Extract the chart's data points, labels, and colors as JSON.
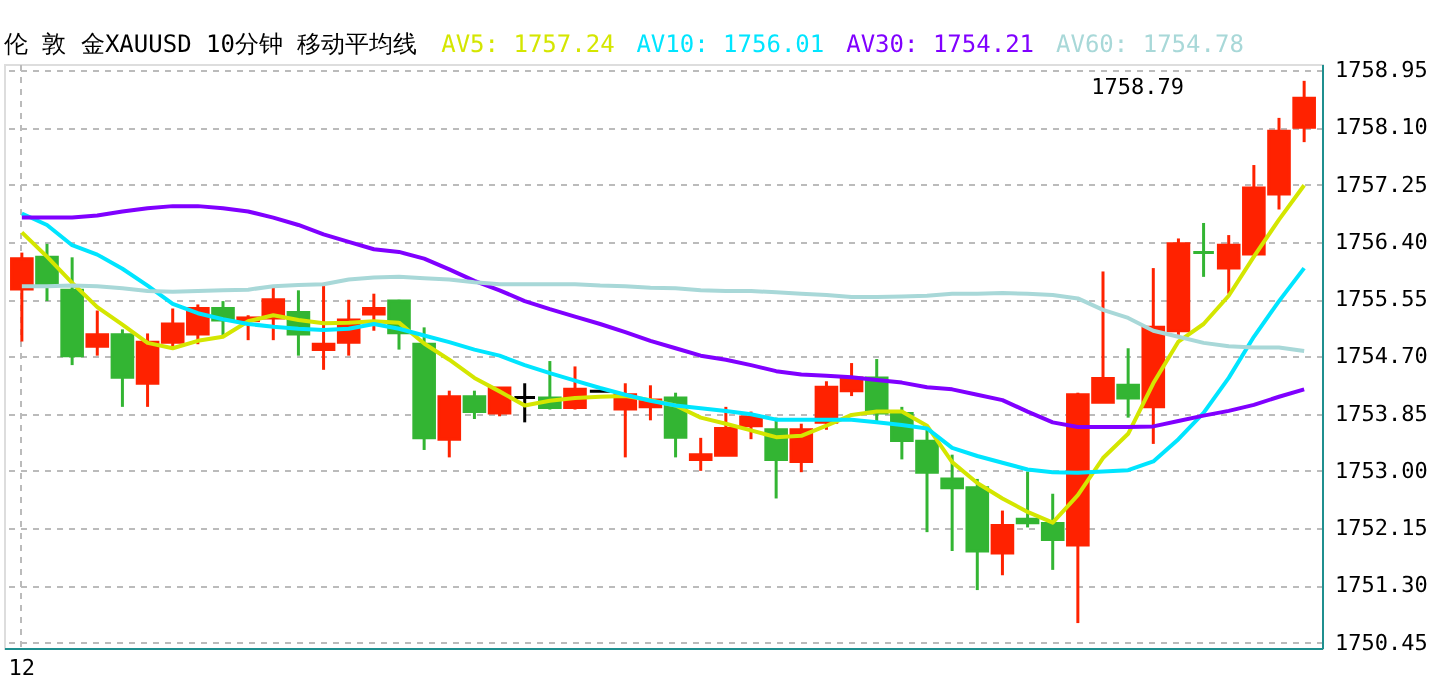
{
  "chart_data": {
    "type": "candlestick",
    "title": "伦 敦 金XAUUSD 10分钟 移动平均线",
    "categories": [
      "12",
      null,
      null,
      null,
      null,
      null,
      null,
      null,
      null,
      null,
      null,
      null,
      null,
      null,
      null,
      null,
      null,
      null,
      null,
      null,
      null,
      null,
      null,
      null,
      null,
      null,
      null,
      null,
      null,
      null,
      null,
      null,
      null,
      null,
      null,
      null,
      null,
      null,
      null,
      null,
      null,
      null,
      null,
      null,
      null,
      null,
      null,
      null,
      null,
      null,
      null,
      null
    ],
    "ohlc": [
      [
        1755.7,
        1756.24,
        1754.92,
        1756.15
      ],
      [
        1756.17,
        1756.37,
        1755.52,
        1755.75
      ],
      [
        1755.68,
        1756.17,
        1754.57,
        1754.71
      ],
      [
        1754.85,
        1755.38,
        1754.71,
        1755.02
      ],
      [
        1755.02,
        1755.1,
        1753.95,
        1754.39
      ],
      [
        1754.3,
        1755.04,
        1753.95,
        1754.91
      ],
      [
        1754.91,
        1755.41,
        1754.83,
        1755.18
      ],
      [
        1755.03,
        1755.47,
        1754.88,
        1755.41
      ],
      [
        1755.41,
        1755.52,
        1754.99,
        1755.24
      ],
      [
        1755.23,
        1755.31,
        1754.94,
        1755.27
      ],
      [
        1755.27,
        1755.73,
        1754.94,
        1755.54
      ],
      [
        1755.35,
        1755.68,
        1754.71,
        1755.03
      ],
      [
        1754.8,
        1755.79,
        1754.5,
        1754.88
      ],
      [
        1754.91,
        1755.54,
        1754.71,
        1755.24
      ],
      [
        1755.33,
        1755.63,
        1755.08,
        1755.41
      ],
      [
        1755.52,
        1755.54,
        1754.8,
        1755.05
      ],
      [
        1754.88,
        1755.13,
        1753.31,
        1753.49
      ],
      [
        1753.47,
        1754.19,
        1753.2,
        1754.1
      ],
      [
        1754.1,
        1754.19,
        1753.77,
        1753.88
      ],
      [
        1753.86,
        1754.23,
        1753.81,
        1754.23
      ],
      [
        1754.09,
        1754.3,
        1753.72,
        1754.09
      ],
      [
        1754.08,
        1754.63,
        1753.91,
        1753.94
      ],
      [
        1753.94,
        1754.55,
        1753.91,
        1754.21
      ],
      [
        1754.18,
        1754.18,
        1754.18,
        1754.18
      ],
      [
        1753.92,
        1754.3,
        1753.2,
        1754.13
      ],
      [
        1753.95,
        1754.27,
        1753.75,
        1754.05
      ],
      [
        1754.08,
        1754.16,
        1753.2,
        1753.5
      ],
      [
        1753.17,
        1753.49,
        1753.0,
        1753.24
      ],
      [
        1753.23,
        1753.95,
        1753.23,
        1753.63
      ],
      [
        1753.67,
        1753.88,
        1753.47,
        1753.8
      ],
      [
        1753.61,
        1753.79,
        1752.59,
        1753.17
      ],
      [
        1753.14,
        1753.7,
        1752.98,
        1753.61
      ],
      [
        1753.72,
        1754.33,
        1753.61,
        1754.24
      ],
      [
        1754.19,
        1754.6,
        1754.11,
        1754.38
      ],
      [
        1754.38,
        1754.66,
        1753.7,
        1753.86
      ],
      [
        1753.85,
        1753.95,
        1753.17,
        1753.45
      ],
      [
        1753.44,
        1753.61,
        1752.09,
        1752.98
      ],
      [
        1752.88,
        1753.24,
        1751.81,
        1752.75
      ],
      [
        1752.75,
        1752.88,
        1751.23,
        1751.81
      ],
      [
        1751.78,
        1752.41,
        1751.45,
        1752.19
      ],
      [
        1752.28,
        1752.99,
        1752.16,
        1752.23
      ],
      [
        1752.22,
        1752.66,
        1751.53,
        1751.98
      ],
      [
        1751.9,
        1754.16,
        1750.74,
        1754.13
      ],
      [
        1754.02,
        1755.96,
        1754.02,
        1754.37
      ],
      [
        1754.27,
        1754.82,
        1753.79,
        1754.08
      ],
      [
        1753.95,
        1756.01,
        1753.4,
        1755.13
      ],
      [
        1755.08,
        1756.45,
        1755.02,
        1756.37
      ],
      [
        1756.24,
        1756.68,
        1755.88,
        1756.24
      ],
      [
        1756.01,
        1756.5,
        1755.63,
        1756.35
      ],
      [
        1756.22,
        1757.54,
        1756.22,
        1757.2
      ],
      [
        1757.11,
        1758.24,
        1756.88,
        1758.04
      ],
      [
        1758.1,
        1758.79,
        1757.88,
        1758.53
      ]
    ],
    "colors": [
      "#ff2200",
      "#33b533",
      "#33b533",
      "#ff2200",
      "#33b533",
      "#ff2200",
      "#ff2200",
      "#ff2200",
      "#33b533",
      "#ff2200",
      "#ff2200",
      "#33b533",
      "#ff2200",
      "#ff2200",
      "#ff2200",
      "#33b533",
      "#33b533",
      "#ff2200",
      "#33b533",
      "#ff2200",
      "#000000",
      "#33b533",
      "#ff2200",
      "#000000",
      "#ff2200",
      "#ff2200",
      "#33b533",
      "#ff2200",
      "#ff2200",
      "#ff2200",
      "#33b533",
      "#ff2200",
      "#ff2200",
      "#ff2200",
      "#33b533",
      "#33b533",
      "#33b533",
      "#33b533",
      "#33b533",
      "#ff2200",
      "#33b533",
      "#33b533",
      "#ff2200",
      "#ff2200",
      "#33b533",
      "#ff2200",
      "#ff2200",
      "#33b533",
      "#ff2200",
      "#ff2200",
      "#ff2200",
      "#ff2200"
    ],
    "series": [
      {
        "name": "AV5: 1757.24",
        "type": "line",
        "color": "#d4e600",
        "values": [
          1756.54,
          1756.18,
          1755.79,
          1755.43,
          1755.17,
          1754.9,
          1754.82,
          1754.93,
          1754.99,
          1755.22,
          1755.31,
          1755.24,
          1755.19,
          1755.2,
          1755.22,
          1755.2,
          1754.89,
          1754.65,
          1754.38,
          1754.18,
          1753.97,
          1754.04,
          1754.08,
          1754.1,
          1754.11,
          1754.05,
          1753.97,
          1753.79,
          1753.7,
          1753.6,
          1753.5,
          1753.52,
          1753.67,
          1753.83,
          1753.88,
          1753.88,
          1753.67,
          1753.13,
          1752.82,
          1752.59,
          1752.39,
          1752.23,
          1752.64,
          1753.19,
          1753.55,
          1754.3,
          1754.92,
          1755.18,
          1755.6,
          1756.18,
          1756.73,
          1757.24
        ]
      },
      {
        "name": "AV10: 1756.01",
        "type": "line",
        "color": "#00e5ff",
        "values": [
          1756.82,
          1756.65,
          1756.35,
          1756.21,
          1756.0,
          1755.75,
          1755.48,
          1755.34,
          1755.25,
          1755.18,
          1755.14,
          1755.11,
          1755.09,
          1755.11,
          1755.18,
          1755.11,
          1755.01,
          1754.91,
          1754.8,
          1754.71,
          1754.57,
          1754.45,
          1754.34,
          1754.23,
          1754.13,
          1754.04,
          1753.97,
          1753.93,
          1753.89,
          1753.84,
          1753.76,
          1753.76,
          1753.76,
          1753.76,
          1753.72,
          1753.68,
          1753.63,
          1753.34,
          1753.22,
          1753.12,
          1753.02,
          1752.98,
          1752.97,
          1752.99,
          1753.01,
          1753.14,
          1753.47,
          1753.86,
          1754.38,
          1754.99,
          1755.52,
          1756.01
        ]
      },
      {
        "name": "AV30: 1754.21",
        "type": "line",
        "color": "#8000ff",
        "values": [
          1756.76,
          1756.76,
          1756.76,
          1756.79,
          1756.85,
          1756.9,
          1756.93,
          1756.93,
          1756.9,
          1756.85,
          1756.76,
          1756.65,
          1756.51,
          1756.4,
          1756.29,
          1756.25,
          1756.15,
          1755.99,
          1755.82,
          1755.68,
          1755.52,
          1755.4,
          1755.29,
          1755.18,
          1755.06,
          1754.93,
          1754.82,
          1754.71,
          1754.65,
          1754.57,
          1754.48,
          1754.43,
          1754.41,
          1754.39,
          1754.35,
          1754.31,
          1754.24,
          1754.21,
          1754.13,
          1754.05,
          1753.88,
          1753.72,
          1753.65,
          1753.65,
          1753.65,
          1753.66,
          1753.74,
          1753.82,
          1753.89,
          1753.98,
          1754.1,
          1754.21
        ]
      },
      {
        "name": "AV60: 1754.78",
        "type": "line",
        "color": "#a8d8d8",
        "values": [
          1755.74,
          1755.74,
          1755.75,
          1755.74,
          1755.71,
          1755.67,
          1755.66,
          1755.67,
          1755.68,
          1755.69,
          1755.74,
          1755.76,
          1755.77,
          1755.84,
          1755.87,
          1755.88,
          1755.86,
          1755.84,
          1755.8,
          1755.77,
          1755.77,
          1755.77,
          1755.77,
          1755.75,
          1755.74,
          1755.72,
          1755.71,
          1755.68,
          1755.67,
          1755.67,
          1755.65,
          1755.63,
          1755.61,
          1755.58,
          1755.58,
          1755.59,
          1755.6,
          1755.63,
          1755.63,
          1755.64,
          1755.63,
          1755.61,
          1755.56,
          1755.39,
          1755.27,
          1755.08,
          1754.99,
          1754.9,
          1754.85,
          1754.83,
          1754.83,
          1754.78
        ]
      }
    ],
    "ylim": [
      1750.37,
      1759.04
    ],
    "yticks": [
      {
        "value": 1750.45,
        "label": "1750.45"
      },
      {
        "value": 1751.3,
        "label": "1751.30"
      },
      {
        "value": 1752.15,
        "label": "1752.15"
      },
      {
        "value": 1753.0,
        "label": "1753.00"
      },
      {
        "value": 1753.85,
        "label": "1753.85"
      },
      {
        "value": 1754.7,
        "label": "1754.70"
      },
      {
        "value": 1755.55,
        "label": "1755.55"
      },
      {
        "value": 1756.4,
        "label": "1756.40"
      },
      {
        "value": 1757.25,
        "label": "1757.25"
      },
      {
        "value": 1758.1,
        "label": "1758.10"
      },
      {
        "value": 1758.95,
        "label": "1758.95"
      }
    ],
    "annotations": [
      "1758.79"
    ],
    "grid": true,
    "legend": "top",
    "line_style": "solid",
    "marker": "none"
  }
}
